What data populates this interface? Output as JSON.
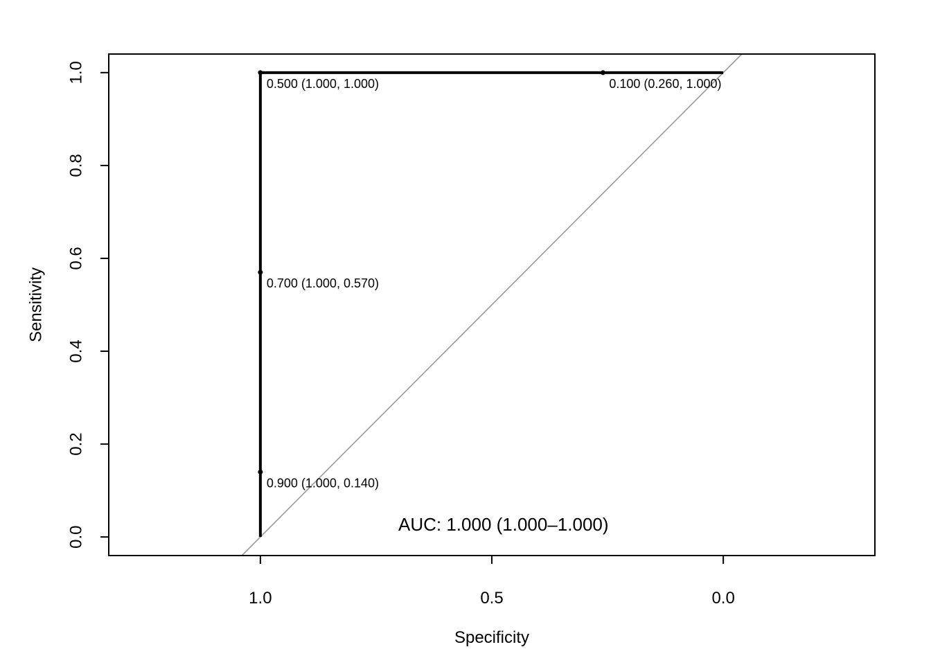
{
  "chart_data": {
    "type": "line",
    "xlabel": "Specificity",
    "ylabel": "Sensitivity",
    "x_reversed": true,
    "xlim": [
      1.3275,
      -0.3275
    ],
    "ylim": [
      -0.04,
      1.04
    ],
    "x_ticks": [
      1.0,
      0.5,
      0.0
    ],
    "x_tick_labels": [
      "1.0",
      "0.5",
      "0.0"
    ],
    "y_ticks": [
      0.0,
      0.2,
      0.4,
      0.6,
      0.8,
      1.0
    ],
    "y_tick_labels": [
      "0.0",
      "0.2",
      "0.4",
      "0.6",
      "0.8",
      "1.0"
    ],
    "grid": false,
    "series": [
      {
        "color": "#000000",
        "x": [
          1.0,
          1.0,
          1.0,
          1.0,
          0.26,
          0.0
        ],
        "y": [
          0.0,
          0.14,
          0.57,
          1.0,
          1.0,
          1.0
        ]
      }
    ],
    "reference_line": {
      "color": "#999999",
      "intercept": 1,
      "slope": 1
    },
    "points": [
      {
        "x": 1.0,
        "y": 1.0,
        "label": "0.500 (1.000, 1.000)"
      },
      {
        "x": 0.26,
        "y": 1.0,
        "label": "0.100 (0.260, 1.000)"
      },
      {
        "x": 1.0,
        "y": 0.57,
        "label": "0.700 (1.000, 0.570)"
      },
      {
        "x": 1.0,
        "y": 0.14,
        "label": "0.900 (1.000, 0.140)"
      }
    ],
    "annotation": "AUC: 1.000 (1.000–1.000)"
  }
}
